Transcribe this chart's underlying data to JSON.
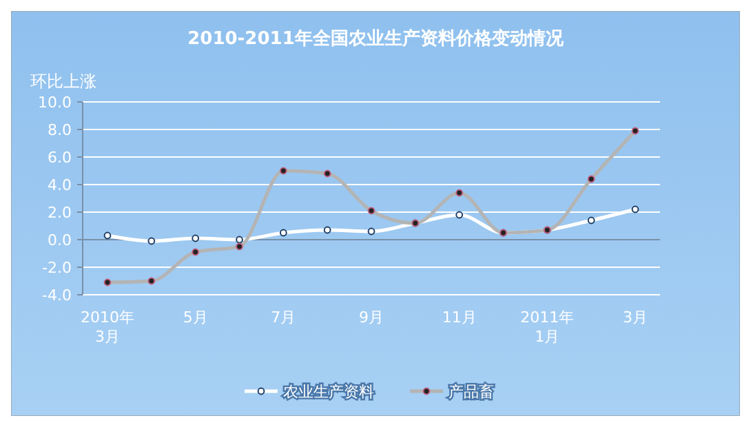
{
  "chart_data": {
    "type": "line",
    "title": "2010-2011年全国农业生产资料价格变动情况",
    "ylabel": "环比上涨",
    "categories": [
      "2010年\n3月",
      null,
      "5月",
      null,
      "7月",
      null,
      "9月",
      null,
      "11月",
      null,
      "2011年\n1月",
      null,
      "3月"
    ],
    "series": [
      {
        "name": "农业生产资料",
        "color": "#ffffff",
        "values": [
          0.3,
          -0.1,
          0.1,
          0.0,
          0.5,
          0.7,
          0.6,
          1.2,
          1.8,
          0.5,
          0.7,
          1.4,
          2.2
        ]
      },
      {
        "name": "产品畜",
        "color": "#b4b4b4",
        "values": [
          -3.1,
          -3.0,
          -0.9,
          -0.5,
          5.0,
          4.8,
          2.1,
          1.2,
          3.4,
          0.5,
          0.7,
          4.4,
          7.9
        ]
      }
    ],
    "ylim": [
      -4,
      10
    ],
    "yticks": [
      {
        "value": -4,
        "label": "-4.0"
      },
      {
        "value": -2,
        "label": "-2.0"
      },
      {
        "value": 0,
        "label": "0.0"
      },
      {
        "value": 2,
        "label": "2.0"
      },
      {
        "value": 4,
        "label": "4.0"
      },
      {
        "value": 6,
        "label": "6.0"
      },
      {
        "value": 8,
        "label": "8.0"
      },
      {
        "value": 10,
        "label": "10.0"
      }
    ],
    "ref_lines": [
      {
        "axis": "y",
        "value": 0,
        "color": "#7890a8"
      }
    ],
    "grid": "y",
    "legend": "bottom",
    "marker": "circle",
    "line_style": "solid"
  }
}
